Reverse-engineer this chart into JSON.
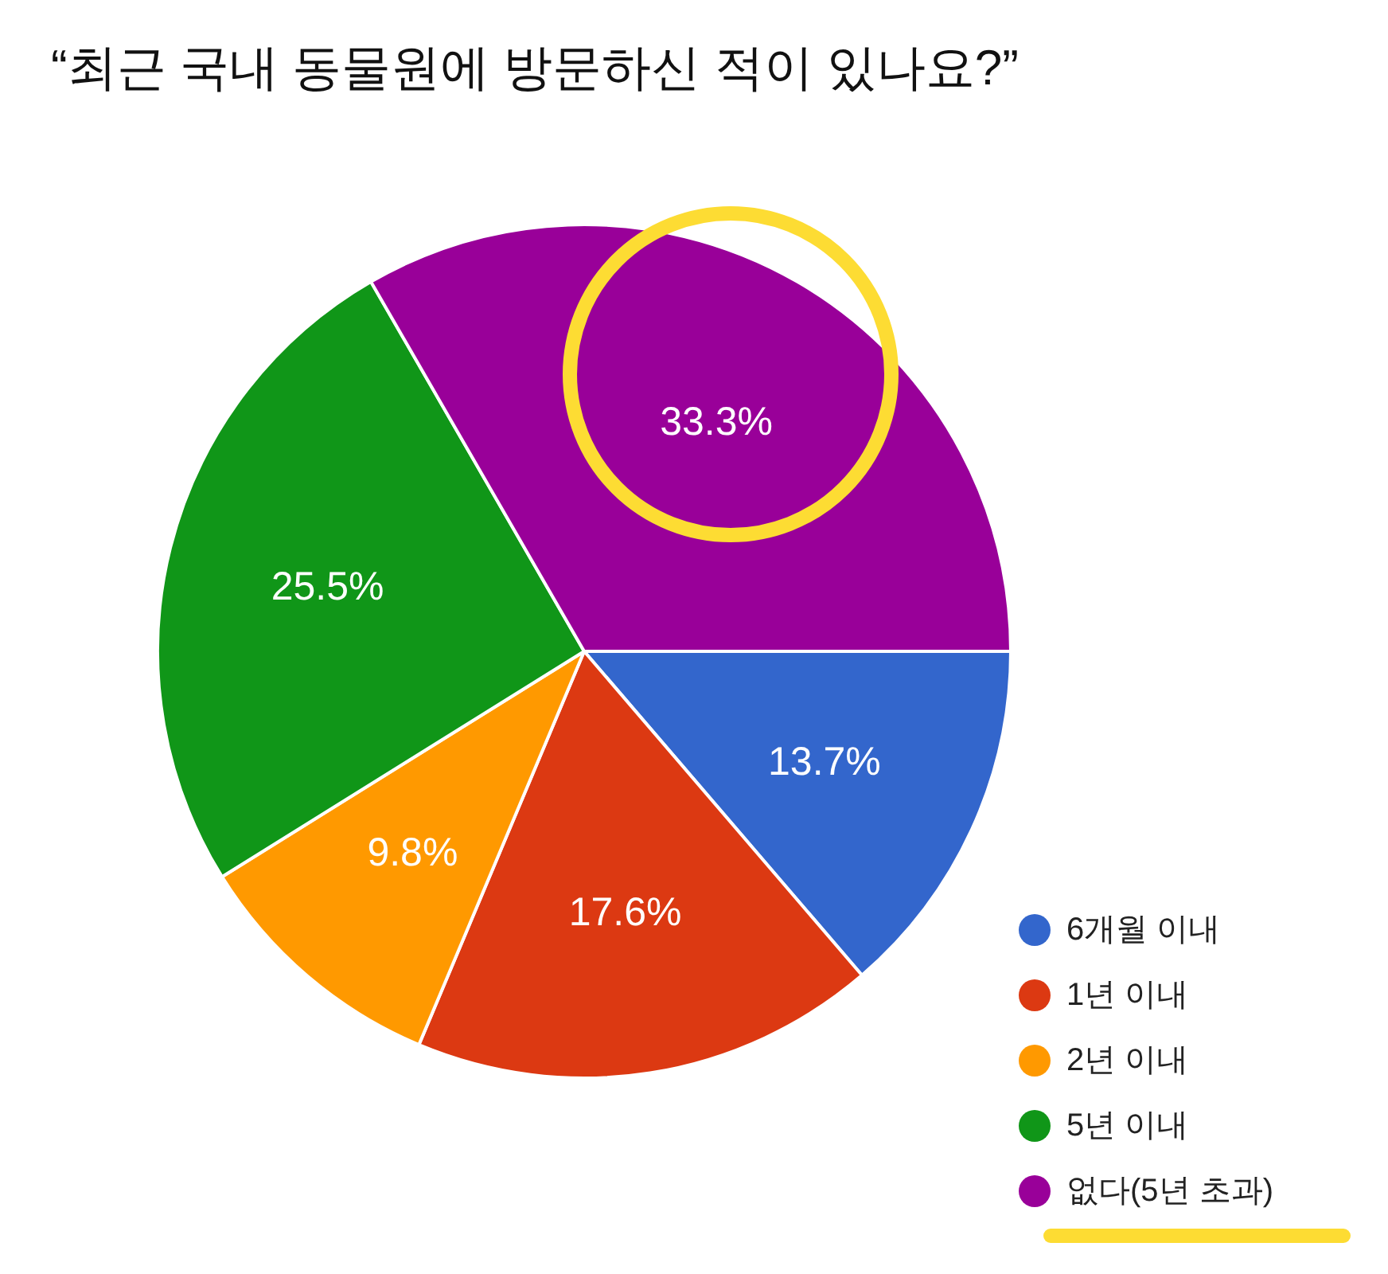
{
  "chart_data": {
    "type": "pie",
    "title": "“최근 국내 동물원에 방문하신 적이 있나요?”",
    "categories": [
      "6개월 이내",
      "1년 이내",
      "2년 이내",
      "5년 이내",
      "없다(5년 초과)"
    ],
    "values": [
      13.7,
      17.6,
      9.8,
      25.5,
      33.3
    ],
    "colors": [
      "#3366cc",
      "#dc3912",
      "#ff9900",
      "#109618",
      "#990099"
    ],
    "value_labels": [
      "13.7%",
      "17.6%",
      "9.8%",
      "25.5%",
      "33.3%"
    ],
    "legend": "bottom right"
  }
}
